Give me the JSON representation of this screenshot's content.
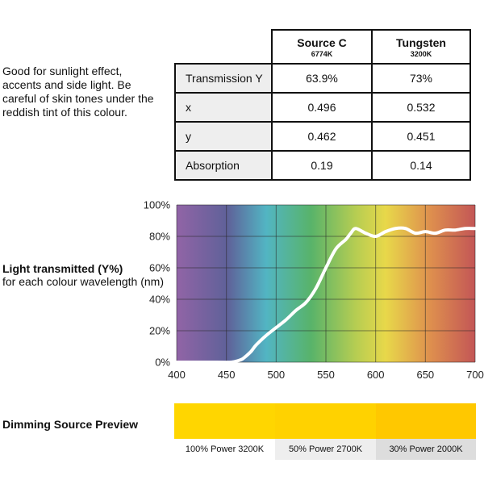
{
  "description": "Good for sunlight effect, accents and side light. Be careful of skin tones under the reddish tint of this colour.",
  "table": {
    "columns": [
      {
        "name": "Source C",
        "sub": "6774K"
      },
      {
        "name": "Tungsten",
        "sub": "3200K"
      }
    ],
    "rows": [
      {
        "label": "Transmission Y",
        "values": [
          "63.9%",
          "73%"
        ]
      },
      {
        "label": "x",
        "values": [
          "0.496",
          "0.532"
        ]
      },
      {
        "label": "y",
        "values": [
          "0.462",
          "0.451"
        ]
      },
      {
        "label": "Absorption",
        "values": [
          "0.19",
          "0.14"
        ]
      }
    ]
  },
  "chart_label": {
    "title": "Light transmitted (Y%)",
    "subtitle": "for each colour wavelength (nm)"
  },
  "chart_data": {
    "type": "line",
    "xlim": [
      400,
      700
    ],
    "ylim": [
      0,
      100
    ],
    "x_ticks": [
      "400",
      "450",
      "500",
      "550",
      "600",
      "650",
      "700"
    ],
    "y_ticks": [
      "0%",
      "20%",
      "40%",
      "60%",
      "80%",
      "100%"
    ],
    "grid": true,
    "line_color": "#ffffff",
    "x": [
      400,
      440,
      455,
      462,
      466,
      470,
      475,
      480,
      490,
      500,
      510,
      520,
      530,
      540,
      550,
      560,
      570,
      575,
      580,
      590,
      600,
      610,
      620,
      630,
      640,
      650,
      660,
      670,
      680,
      690,
      700
    ],
    "y": [
      0,
      0,
      0,
      1,
      2,
      4,
      7,
      11,
      17,
      22,
      27,
      33,
      38,
      47,
      60,
      72,
      78,
      82,
      85,
      82,
      80,
      83,
      85,
      85,
      82,
      83,
      82,
      84,
      84,
      85,
      85
    ]
  },
  "preview": {
    "title": "Dimming Source Preview",
    "swatches": [
      {
        "label": "100% Power 3200K",
        "color": "#ffd600",
        "label_bg": "#ffffff"
      },
      {
        "label": "50% Power 2700K",
        "color": "#ffd200",
        "label_bg": "#eeeeee"
      },
      {
        "label": "30% Power 2000K",
        "color": "#ffc800",
        "label_bg": "#dddddd"
      }
    ]
  }
}
